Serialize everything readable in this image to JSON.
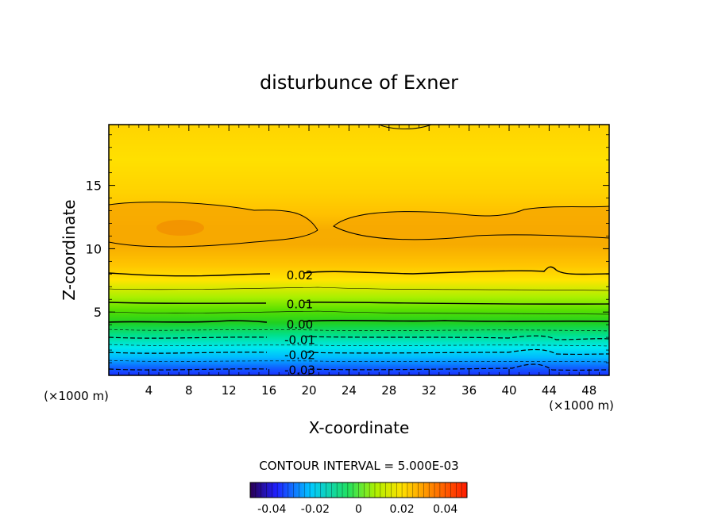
{
  "chart_data": {
    "type": "contour",
    "title": "disturbunce of Exner",
    "xlabel": "X-coordinate",
    "ylabel": "Z-coordinate",
    "x_unit_left": "(×1000 m)",
    "x_unit_right": "(×1000 m)",
    "xlim": [
      0,
      50
    ],
    "ylim": [
      0,
      19.8
    ],
    "x_ticks": [
      4,
      8,
      12,
      16,
      20,
      24,
      28,
      32,
      36,
      40,
      44,
      48
    ],
    "y_ticks": [
      5,
      10,
      15
    ],
    "contour_interval_text": "CONTOUR INTERVAL = 5.000E-03",
    "contour_labels": [
      {
        "text": "0.02",
        "x": 17.5,
        "z": 7.9
      },
      {
        "text": "0.01",
        "x": 17.5,
        "z": 5.6
      },
      {
        "text": "0.00",
        "x": 17.5,
        "z": 4.0
      },
      {
        "text": "-0.01",
        "x": 17.5,
        "z": 2.8
      },
      {
        "text": "-0.02",
        "x": 17.5,
        "z": 1.6
      },
      {
        "text": "-0.03",
        "x": 17.5,
        "z": 0.4
      }
    ],
    "colorbar": {
      "range": [
        -0.05,
        0.05
      ],
      "ticks": [
        "-0.04",
        "-0.02",
        "0",
        "0.02",
        "0.04"
      ],
      "tick_values": [
        -0.04,
        -0.02,
        0,
        0.02,
        0.04
      ]
    },
    "grid": false,
    "colors": {
      "low": "#1a2fff",
      "mid_cyan": "#00e6ff",
      "mid_green": "#2ed100",
      "yellow_green": "#a8f000",
      "yellow": "#ffe400",
      "orange": "#f5a300"
    }
  }
}
